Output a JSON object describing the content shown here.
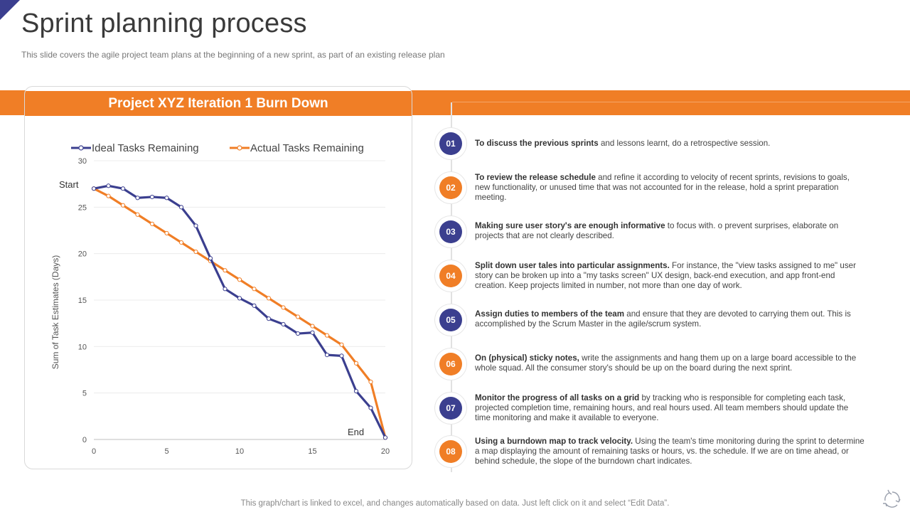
{
  "slide": {
    "title": "Sprint planning process",
    "subtitle": "This slide covers the agile project team plans at the beginning of a new sprint, as part of an existing release plan",
    "footer": "This graph/chart is linked to excel,  and changes automatically based on data. Just left click on it and select “Edit Data”.",
    "colors": {
      "orange": "#f07e26",
      "navy": "#3b3f8f"
    }
  },
  "chart_data": {
    "type": "line",
    "title": "Project XYZ Iteration 1 Burn Down",
    "xlabel": "",
    "ylabel": "Sum of Task Estimates (Days)",
    "xlim": [
      0,
      20
    ],
    "ylim": [
      0,
      30
    ],
    "xticks": [
      0,
      5,
      10,
      15,
      20
    ],
    "yticks": [
      0,
      5,
      10,
      15,
      20,
      25,
      30
    ],
    "grid": true,
    "legend_position": "top",
    "annotations": {
      "start": "Start",
      "end": "End"
    },
    "x": [
      0,
      1,
      2,
      3,
      4,
      5,
      6,
      7,
      8,
      9,
      10,
      11,
      12,
      13,
      14,
      15,
      16,
      17,
      18,
      19,
      20
    ],
    "series": [
      {
        "name": "Ideal Tasks Remaining",
        "color": "#3b3f8f",
        "values": [
          27,
          27.3,
          27,
          26,
          26.1,
          26,
          25,
          23,
          19.5,
          16.2,
          15.2,
          14.4,
          13,
          12.4,
          11.4,
          11.5,
          9.1,
          9,
          5.2,
          3.4,
          0.2
        ]
      },
      {
        "name": "Actual Tasks Remaining",
        "color": "#f07e26",
        "values": [
          27,
          26.2,
          25.2,
          24.2,
          23.2,
          22.2,
          21.2,
          20.2,
          19.2,
          18.2,
          17.2,
          16.2,
          15.2,
          14.2,
          13.2,
          12.2,
          11.2,
          10.2,
          8.2,
          6.2,
          0.2
        ]
      }
    ]
  },
  "steps": [
    {
      "num": "01",
      "color": "blue",
      "bold": "To discuss the previous  sprints",
      "text": " and lessons learnt, do a retrospective session."
    },
    {
      "num": "02",
      "color": "orange",
      "bold": "To review the release schedule",
      "text": " and refine it according to velocity of recent sprints, revisions to goals, new functionality, or unused time that was not accounted for in the release, hold a sprint preparation meeting."
    },
    {
      "num": "03",
      "color": "blue",
      "bold": "Making sure user story's are enough  informative",
      "text": " to focus with. o prevent surprises, elaborate on projects that are not clearly described."
    },
    {
      "num": "04",
      "color": "orange",
      "bold": "Split down user tales into particular assignments.",
      "text": " For instance, the \"view tasks assigned to me\" user story can be broken up into a \"my tasks screen\" UX design, back-end execution, and app front-end creation. Keep projects limited in number, not more than one day of work."
    },
    {
      "num": "05",
      "color": "blue",
      "bold": "Assign duties to members of the team",
      "text": " and ensure that they are devoted to carrying them out. This is accomplished by the Scrum Master in the agile/scrum system."
    },
    {
      "num": "06",
      "color": "orange",
      "bold": "On (physical) sticky notes,",
      "text": " write the assignments and hang them up on a large board accessible to the whole squad. All the consumer story's should be up on the board during the next sprint."
    },
    {
      "num": "07",
      "color": "blue",
      "bold": "Monitor the progress of all tasks on a grid",
      "text": " by tracking who is responsible for completing each task, projected completion time, remaining hours, and real hours used. All team members should update the time monitoring and make it available to everyone."
    },
    {
      "num": "08",
      "color": "orange",
      "bold": "Using  a burndown map to track velocity.",
      "text": "  Using the team's time monitoring during the sprint to determine a map displaying the amount of remaining tasks or hours, vs. the schedule. If we are on time ahead, or behind schedule, the slope of the burndown chart indicates."
    }
  ],
  "logo_icon": "recycle-arrows-icon"
}
